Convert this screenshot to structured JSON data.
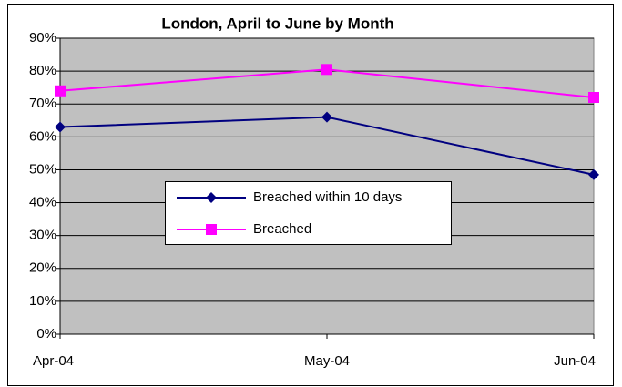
{
  "chart_data": {
    "type": "line",
    "title": "London, April to June by Month",
    "categories": [
      "Apr-04",
      "May-04",
      "Jun-04"
    ],
    "series": [
      {
        "name": "Breached within 10 days",
        "color": "#000080",
        "marker": "diamond",
        "values": [
          63,
          66,
          48.5
        ]
      },
      {
        "name": "Breached",
        "color": "#ff00ff",
        "marker": "square",
        "values": [
          74,
          80.5,
          72
        ]
      }
    ],
    "ylim": [
      0,
      90
    ],
    "yticks": [
      {
        "value": 0,
        "label": "0%"
      },
      {
        "value": 10,
        "label": "10%"
      },
      {
        "value": 20,
        "label": "20%"
      },
      {
        "value": 30,
        "label": "30%"
      },
      {
        "value": 40,
        "label": "40%"
      },
      {
        "value": 50,
        "label": "50%"
      },
      {
        "value": 60,
        "label": "60%"
      },
      {
        "value": 70,
        "label": "70%"
      },
      {
        "value": 80,
        "label": "80%"
      },
      {
        "value": 90,
        "label": "90%"
      }
    ],
    "grid": true,
    "plot_background": "#c0c0c0"
  }
}
